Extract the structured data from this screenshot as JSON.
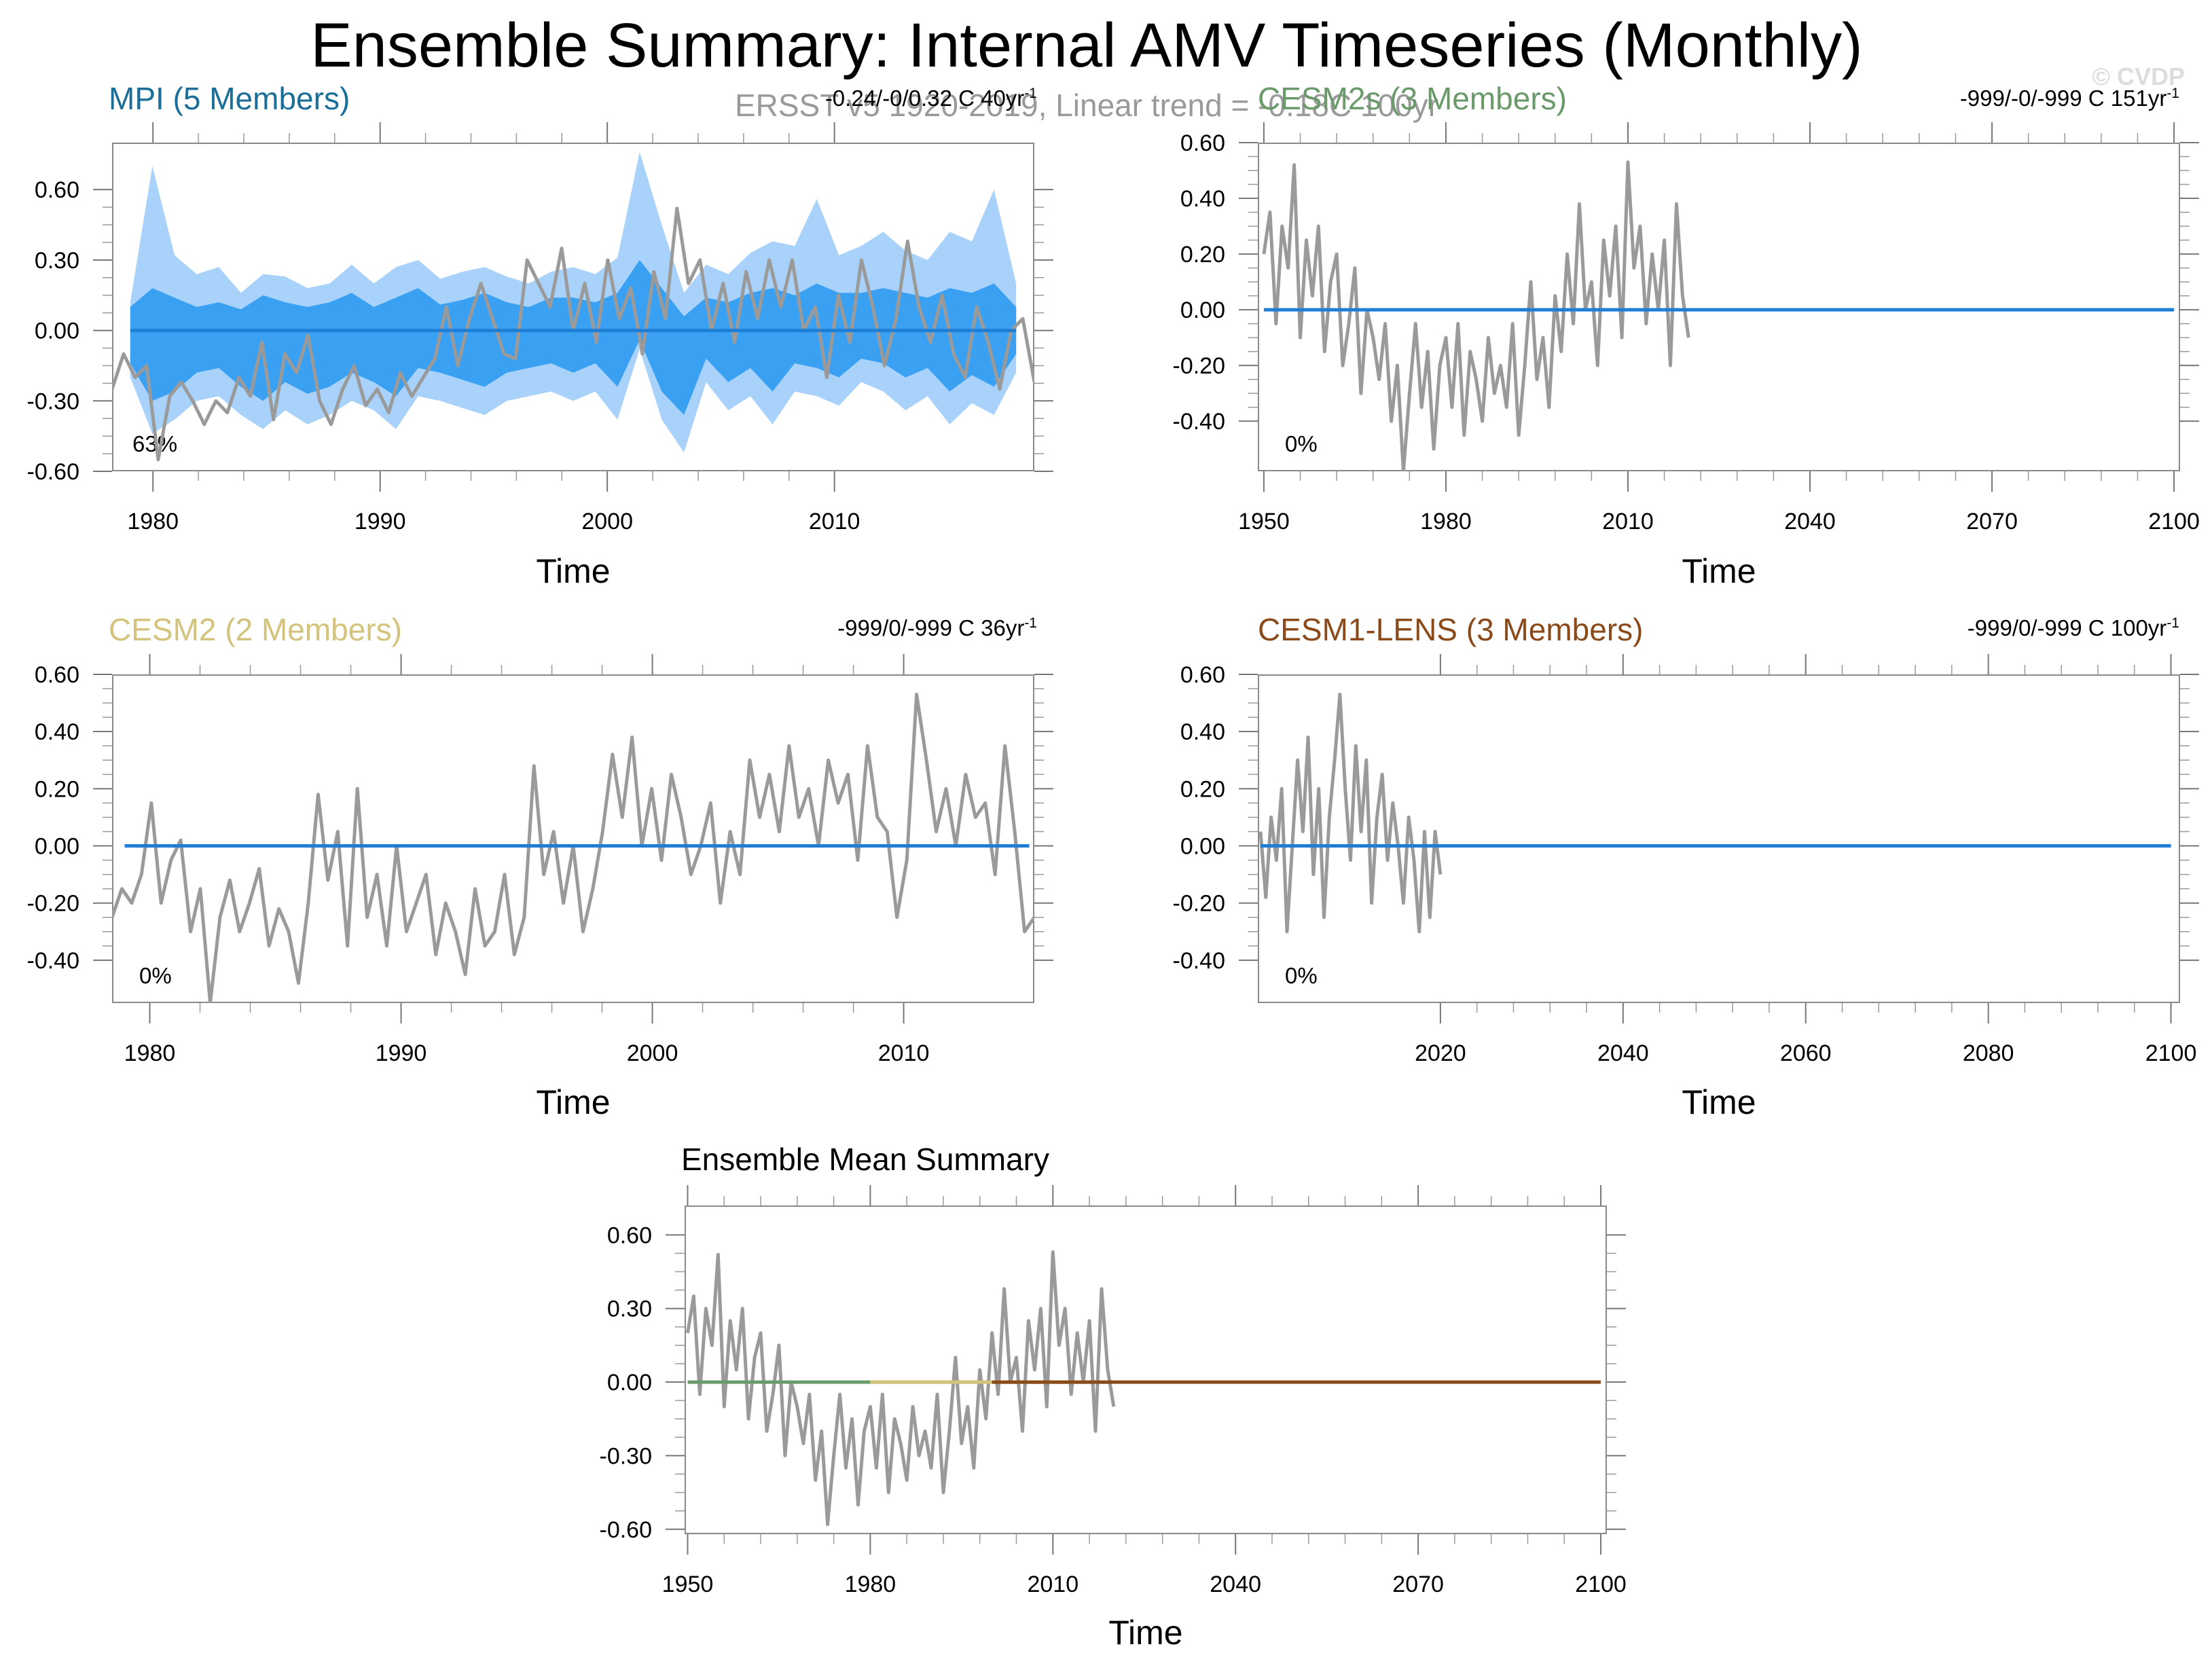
{
  "title": "Ensemble Summary: Internal AMV Timeseries (Monthly)",
  "subtitle": "ERSST v5 1920-2019, Linear trend = -0.18C 100yr",
  "watermark": "© CVDP",
  "axis_label": "Time",
  "colors": {
    "obs": "#9a9a9a",
    "zero_line": "#1f7fd6",
    "mpi_light": "#a9d2fa",
    "mpi_dark": "#3aa0f2",
    "mpi_title": "#1a6e98",
    "cesm2s_title": "#6a9a6a",
    "cesm2_title": "#d4c37c",
    "lens_title": "#8b4a1a",
    "mean_green": "#6a9a6a",
    "mean_yellow": "#d4c37c",
    "mean_brown": "#8b4a1a"
  },
  "panels": [
    {
      "id": "mpi",
      "title": "MPI (5 Members)",
      "stat_text": "-0.24/-0/0.32 C 40yr",
      "stat_sup": "-1",
      "percent": "63%"
    },
    {
      "id": "cesm2s",
      "title": "CESM2s (3 Members)",
      "stat_text": "-999/-0/-999 C 151yr",
      "stat_sup": "-1",
      "percent": "0%"
    },
    {
      "id": "cesm2",
      "title": "CESM2 (2 Members)",
      "stat_text": "-999/0/-999 C 36yr",
      "stat_sup": "-1",
      "percent": "0%"
    },
    {
      "id": "lens",
      "title": "CESM1-LENS (3 Members)",
      "stat_text": "-999/0/-999 C 100yr",
      "stat_sup": "-1",
      "percent": "0%"
    },
    {
      "id": "mean",
      "title": "Ensemble Mean Summary"
    }
  ],
  "chart_data": [
    {
      "type": "area",
      "panel": "mpi",
      "title": "MPI (5 Members)",
      "xlabel": "Time",
      "ylabel": "",
      "xlim": [
        1978.2,
        2018.8
      ],
      "ylim": [
        -0.6,
        0.8
      ],
      "xticks": [
        1980,
        1990,
        2000,
        2010
      ],
      "xtick_labels": [
        "1980",
        "1990",
        "2000",
        "2010"
      ],
      "yticks": [
        -0.6,
        -0.3,
        0,
        0.3,
        0.6
      ],
      "ytick_labels": [
        "-0.60",
        "-0.30",
        "0.00",
        "0.30",
        "0.60"
      ],
      "series": [
        {
          "name": "ensemble spread (outer)",
          "kind": "band",
          "x_start": 1979,
          "x_end": 2018,
          "upper": [
            0.12,
            0.7,
            0.32,
            0.24,
            0.27,
            0.16,
            0.24,
            0.23,
            0.18,
            0.2,
            0.28,
            0.2,
            0.27,
            0.3,
            0.22,
            0.25,
            0.27,
            0.23,
            0.2,
            0.25,
            0.27,
            0.24,
            0.31,
            0.76,
            0.45,
            0.16,
            0.28,
            0.24,
            0.33,
            0.38,
            0.36,
            0.56,
            0.32,
            0.36,
            0.42,
            0.34,
            0.3,
            0.42,
            0.38,
            0.6,
            0.2
          ],
          "lower": [
            -0.2,
            -0.44,
            -0.38,
            -0.3,
            -0.28,
            -0.36,
            -0.42,
            -0.34,
            -0.4,
            -0.36,
            -0.3,
            -0.34,
            -0.42,
            -0.28,
            -0.3,
            -0.33,
            -0.36,
            -0.3,
            -0.28,
            -0.26,
            -0.3,
            -0.26,
            -0.38,
            -0.08,
            -0.38,
            -0.52,
            -0.22,
            -0.34,
            -0.28,
            -0.4,
            -0.26,
            -0.28,
            -0.32,
            -0.22,
            -0.26,
            -0.34,
            -0.28,
            -0.4,
            -0.31,
            -0.36,
            -0.18
          ]
        },
        {
          "name": "ensemble spread (inner)",
          "kind": "band",
          "x_start": 1979,
          "x_end": 2018,
          "upper": [
            0.1,
            0.18,
            0.14,
            0.1,
            0.12,
            0.09,
            0.15,
            0.12,
            0.1,
            0.12,
            0.16,
            0.1,
            0.14,
            0.18,
            0.11,
            0.13,
            0.16,
            0.12,
            0.1,
            0.14,
            0.14,
            0.12,
            0.16,
            0.3,
            0.18,
            0.06,
            0.14,
            0.12,
            0.16,
            0.18,
            0.15,
            0.2,
            0.16,
            0.16,
            0.18,
            0.16,
            0.14,
            0.18,
            0.16,
            0.2,
            0.1
          ],
          "lower": [
            -0.14,
            -0.3,
            -0.26,
            -0.18,
            -0.16,
            -0.24,
            -0.3,
            -0.22,
            -0.27,
            -0.24,
            -0.18,
            -0.22,
            -0.28,
            -0.16,
            -0.18,
            -0.21,
            -0.24,
            -0.18,
            -0.16,
            -0.14,
            -0.18,
            -0.14,
            -0.24,
            -0.04,
            -0.26,
            -0.36,
            -0.12,
            -0.22,
            -0.16,
            -0.26,
            -0.14,
            -0.16,
            -0.2,
            -0.12,
            -0.14,
            -0.2,
            -0.16,
            -0.26,
            -0.19,
            -0.24,
            -0.1
          ]
        },
        {
          "name": "ensemble mean",
          "kind": "line",
          "x": [
            1979,
            2018
          ],
          "values": [
            0,
            0
          ]
        },
        {
          "name": "ERSST v5",
          "kind": "line",
          "x_start": 1978.2,
          "x_end": 2018.8,
          "values": [
            -0.25,
            -0.1,
            -0.2,
            -0.15,
            -0.55,
            -0.28,
            -0.22,
            -0.3,
            -0.4,
            -0.3,
            -0.35,
            -0.2,
            -0.28,
            -0.05,
            -0.38,
            -0.1,
            -0.18,
            -0.02,
            -0.3,
            -0.4,
            -0.25,
            -0.15,
            -0.32,
            -0.25,
            -0.35,
            -0.18,
            -0.28,
            -0.2,
            -0.12,
            0.1,
            -0.15,
            0.05,
            0.2,
            0.05,
            -0.1,
            -0.12,
            0.3,
            0.2,
            0.1,
            0.35,
            0.0,
            0.2,
            -0.05,
            0.3,
            0.05,
            0.18,
            -0.1,
            0.25,
            0.05,
            0.52,
            0.2,
            0.3,
            0.0,
            0.2,
            -0.05,
            0.25,
            0.05,
            0.3,
            0.1,
            0.3,
            0.0,
            0.1,
            -0.2,
            0.15,
            -0.05,
            0.3,
            0.1,
            -0.15,
            0.05,
            0.38,
            0.1,
            -0.05,
            0.15,
            -0.1,
            -0.2,
            0.1,
            -0.05,
            -0.25,
            0.0,
            0.05,
            -0.22
          ]
        }
      ]
    },
    {
      "type": "line",
      "panel": "cesm2s",
      "title": "CESM2s (3 Members)",
      "xlabel": "Time",
      "ylabel": "",
      "xlim": [
        1949,
        2101
      ],
      "ylim": [
        -0.58,
        0.6
      ],
      "xticks": [
        1950,
        1980,
        2010,
        2040,
        2070,
        2100
      ],
      "xtick_labels": [
        "1950",
        "1980",
        "2010",
        "2040",
        "2070",
        "2100"
      ],
      "yticks": [
        -0.4,
        -0.2,
        0,
        0.2,
        0.4,
        0.6
      ],
      "ytick_labels": [
        "-0.40",
        "-0.20",
        "0.00",
        "0.20",
        "0.40",
        "0.60"
      ],
      "series": [
        {
          "name": "ensemble mean",
          "kind": "line",
          "x": [
            1950,
            2100
          ],
          "values": [
            0,
            0
          ]
        },
        {
          "name": "ERSST v5",
          "kind": "line",
          "x_start": 1950,
          "x_end": 2020,
          "values": [
            0.2,
            0.35,
            -0.05,
            0.3,
            0.15,
            0.52,
            -0.1,
            0.25,
            0.05,
            0.3,
            -0.15,
            0.1,
            0.2,
            -0.2,
            -0.05,
            0.15,
            -0.3,
            0.0,
            -0.1,
            -0.25,
            -0.05,
            -0.4,
            -0.2,
            -0.58,
            -0.3,
            -0.05,
            -0.35,
            -0.15,
            -0.5,
            -0.2,
            -0.1,
            -0.35,
            -0.05,
            -0.45,
            -0.15,
            -0.25,
            -0.4,
            -0.1,
            -0.3,
            -0.2,
            -0.35,
            -0.05,
            -0.45,
            -0.2,
            0.1,
            -0.25,
            -0.1,
            -0.35,
            0.05,
            -0.15,
            0.2,
            -0.05,
            0.38,
            0.0,
            0.1,
            -0.2,
            0.25,
            0.05,
            0.3,
            -0.1,
            0.53,
            0.15,
            0.3,
            -0.05,
            0.2,
            0.0,
            0.25,
            -0.2,
            0.38,
            0.05,
            -0.1
          ]
        }
      ]
    },
    {
      "type": "line",
      "panel": "cesm2",
      "title": "CESM2 (2 Members)",
      "xlabel": "Time",
      "ylabel": "",
      "xlim": [
        1978.5,
        2015.2
      ],
      "ylim": [
        -0.55,
        0.6
      ],
      "xticks": [
        1980,
        1990,
        2000,
        2010
      ],
      "xtick_labels": [
        "1980",
        "1990",
        "2000",
        "2010"
      ],
      "yticks": [
        -0.4,
        -0.2,
        0,
        0.2,
        0.4,
        0.6
      ],
      "ytick_labels": [
        "-0.40",
        "-0.20",
        "0.00",
        "0.20",
        "0.40",
        "0.60"
      ],
      "series": [
        {
          "name": "ensemble mean",
          "kind": "line",
          "x": [
            1979,
            2015
          ],
          "values": [
            0,
            0
          ]
        },
        {
          "name": "ERSST v5",
          "kind": "line",
          "x_start": 1978.5,
          "x_end": 2015.2,
          "values": [
            -0.25,
            -0.15,
            -0.2,
            -0.1,
            0.15,
            -0.2,
            -0.05,
            0.02,
            -0.3,
            -0.15,
            -0.55,
            -0.25,
            -0.12,
            -0.3,
            -0.2,
            -0.08,
            -0.35,
            -0.22,
            -0.3,
            -0.48,
            -0.2,
            0.18,
            -0.12,
            0.05,
            -0.35,
            0.2,
            -0.25,
            -0.1,
            -0.35,
            0.0,
            -0.3,
            -0.2,
            -0.1,
            -0.38,
            -0.2,
            -0.3,
            -0.45,
            -0.15,
            -0.35,
            -0.3,
            -0.1,
            -0.38,
            -0.25,
            0.28,
            -0.1,
            0.05,
            -0.2,
            0.0,
            -0.3,
            -0.15,
            0.05,
            0.32,
            0.1,
            0.38,
            0.0,
            0.2,
            -0.05,
            0.25,
            0.1,
            -0.1,
            0.0,
            0.15,
            -0.2,
            0.05,
            -0.1,
            0.3,
            0.1,
            0.25,
            0.05,
            0.35,
            0.1,
            0.2,
            0.0,
            0.3,
            0.15,
            0.25,
            -0.05,
            0.35,
            0.1,
            0.05,
            -0.25,
            -0.05,
            0.53,
            0.3,
            0.05,
            0.2,
            0.0,
            0.25,
            0.1,
            0.15,
            -0.1,
            0.35,
            0.05,
            -0.3,
            -0.25
          ]
        }
      ]
    },
    {
      "type": "line",
      "panel": "lens",
      "title": "CESM1-LENS (3 Members)",
      "xlabel": "Time",
      "ylabel": "",
      "xlim": [
        2000,
        2101
      ],
      "ylim": [
        -0.55,
        0.6
      ],
      "xticks": [
        2020,
        2040,
        2060,
        2080,
        2100
      ],
      "xtick_labels": [
        "2020",
        "2040",
        "2060",
        "2080",
        "2100"
      ],
      "yticks": [
        -0.4,
        -0.2,
        0,
        0.2,
        0.4,
        0.6
      ],
      "ytick_labels": [
        "-0.40",
        "-0.20",
        "0.00",
        "0.20",
        "0.40",
        "0.60"
      ],
      "series": [
        {
          "name": "ensemble mean",
          "kind": "line",
          "x": [
            2000.3,
            2100
          ],
          "values": [
            0,
            0
          ]
        },
        {
          "name": "ERSST v5",
          "kind": "line",
          "x_start": 2000.3,
          "x_end": 2020,
          "values": [
            0.05,
            -0.18,
            0.1,
            -0.05,
            0.2,
            -0.3,
            0.0,
            0.3,
            0.05,
            0.38,
            -0.1,
            0.2,
            -0.25,
            0.1,
            0.3,
            0.53,
            0.2,
            -0.05,
            0.35,
            0.05,
            0.3,
            -0.2,
            0.1,
            0.25,
            -0.05,
            0.15,
            0.0,
            -0.2,
            0.1,
            -0.05,
            -0.3,
            0.05,
            -0.25,
            0.05,
            -0.1
          ]
        }
      ]
    },
    {
      "type": "line",
      "panel": "mean",
      "title": "Ensemble Mean Summary",
      "xlabel": "Time",
      "ylabel": "",
      "xlim": [
        1949.5,
        2101
      ],
      "ylim": [
        -0.62,
        0.72
      ],
      "xticks": [
        1950,
        1980,
        2010,
        2040,
        2070,
        2100
      ],
      "xtick_labels": [
        "1950",
        "1980",
        "2010",
        "2040",
        "2070",
        "2100"
      ],
      "yticks": [
        -0.6,
        -0.3,
        0,
        0.3,
        0.6
      ],
      "ytick_labels": [
        "-0.60",
        "-0.30",
        "0.00",
        "0.30",
        "0.60"
      ],
      "series": [
        {
          "name": "CESM2s mean",
          "kind": "line",
          "x": [
            1950,
            2020
          ],
          "values": [
            0,
            0
          ]
        },
        {
          "name": "CESM2 mean",
          "kind": "line",
          "x": [
            1980,
            2015
          ],
          "values": [
            0,
            0
          ]
        },
        {
          "name": "CESM1-LENS mean",
          "kind": "line",
          "x": [
            2000,
            2100
          ],
          "values": [
            0,
            0
          ]
        },
        {
          "name": "ERSST v5",
          "kind": "line",
          "x_start": 1950,
          "x_end": 2020,
          "values": [
            0.2,
            0.35,
            -0.05,
            0.3,
            0.15,
            0.52,
            -0.1,
            0.25,
            0.05,
            0.3,
            -0.15,
            0.1,
            0.2,
            -0.2,
            -0.05,
            0.15,
            -0.3,
            0.0,
            -0.1,
            -0.25,
            -0.05,
            -0.4,
            -0.2,
            -0.58,
            -0.3,
            -0.05,
            -0.35,
            -0.15,
            -0.5,
            -0.2,
            -0.1,
            -0.35,
            -0.05,
            -0.45,
            -0.15,
            -0.25,
            -0.4,
            -0.1,
            -0.3,
            -0.2,
            -0.35,
            -0.05,
            -0.45,
            -0.2,
            0.1,
            -0.25,
            -0.1,
            -0.35,
            0.05,
            -0.15,
            0.2,
            -0.05,
            0.38,
            0.0,
            0.1,
            -0.2,
            0.25,
            0.05,
            0.3,
            -0.1,
            0.53,
            0.15,
            0.3,
            -0.05,
            0.2,
            0.0,
            0.25,
            -0.2,
            0.38,
            0.05,
            -0.1
          ]
        }
      ]
    }
  ]
}
